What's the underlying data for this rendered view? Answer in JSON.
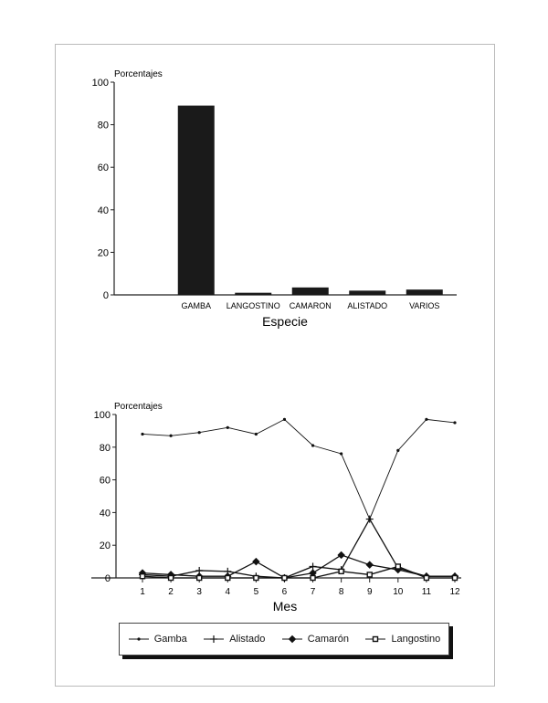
{
  "chart_data": [
    {
      "type": "bar",
      "ylabel": "Porcentajes",
      "xlabel": "Especie",
      "ylim": [
        0,
        100
      ],
      "yticks": [
        0,
        20,
        40,
        60,
        80,
        100
      ],
      "categories": [
        "",
        "GAMBA",
        "LANGOSTINO",
        "CAMARON",
        "ALISTADO",
        "VARIOS"
      ],
      "values": [
        0,
        89,
        1,
        3.5,
        2,
        2.5
      ],
      "colors": {
        "bar": "#1a1a1a"
      }
    },
    {
      "type": "line",
      "ylabel": "Porcentajes",
      "xlabel": "Mes",
      "ylim": [
        0,
        100
      ],
      "yticks": [
        0,
        20,
        40,
        60,
        80,
        100
      ],
      "x": [
        1,
        2,
        3,
        4,
        5,
        6,
        7,
        8,
        9,
        10,
        11,
        12
      ],
      "legend_position": "bottom",
      "series": [
        {
          "name": "Gamba",
          "marker": "dot",
          "values": [
            88,
            87,
            89,
            92,
            88,
            97,
            81,
            76,
            36,
            78,
            97,
            95
          ]
        },
        {
          "name": "Alistado",
          "marker": "plus",
          "values": [
            2,
            1,
            4.5,
            4,
            1,
            0,
            7,
            5,
            36,
            6,
            1,
            1
          ]
        },
        {
          "name": "Camarón",
          "marker": "asterisk",
          "values": [
            3,
            2,
            1,
            1,
            10,
            0,
            3,
            14,
            8,
            5,
            1,
            1
          ]
        },
        {
          "name": "Langostino",
          "marker": "square",
          "values": [
            1,
            0,
            0,
            0,
            0,
            0,
            0,
            4,
            2,
            7,
            0,
            0
          ]
        }
      ]
    }
  ]
}
